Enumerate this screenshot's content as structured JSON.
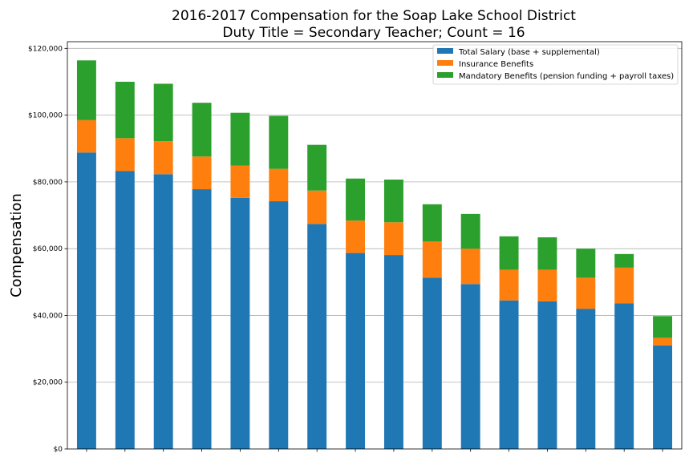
{
  "chart_data": {
    "type": "bar",
    "stacked": true,
    "title": [
      "2016-2017 Compensation for the Soap Lake School District",
      "Duty Title = Secondary Teacher; Count = 16"
    ],
    "xlabel": "",
    "ylabel": "Compensation",
    "ylim": [
      0,
      122000
    ],
    "yticks": [
      0,
      20000,
      40000,
      60000,
      80000,
      100000,
      120000
    ],
    "ytick_labels": [
      "$0",
      "$20,000",
      "$40,000",
      "$60,000",
      "$80,000",
      "$100,000",
      "$120,000"
    ],
    "grid": "horizontal",
    "legend_position": "top-right",
    "series": [
      {
        "name": "Total Salary (base + supplemental)",
        "color": "#1f77b4",
        "values": [
          88800,
          83300,
          82300,
          77800,
          75200,
          74200,
          67400,
          58700,
          58100,
          51300,
          49400,
          44500,
          44200,
          42000,
          43600,
          31000
        ]
      },
      {
        "name": "Insurance Benefits",
        "color": "#ff7f0e",
        "values": [
          9700,
          9800,
          9900,
          9800,
          9700,
          9700,
          10000,
          9700,
          9800,
          10900,
          10600,
          9200,
          9500,
          9300,
          10700,
          2300
        ]
      },
      {
        "name": "Mandatory Benefits (pension funding + payroll taxes)",
        "color": "#2ca02c",
        "values": [
          17900,
          16900,
          17200,
          16100,
          15800,
          15900,
          13700,
          12600,
          12800,
          11100,
          10400,
          10000,
          9700,
          8700,
          4100,
          6500
        ]
      }
    ]
  }
}
